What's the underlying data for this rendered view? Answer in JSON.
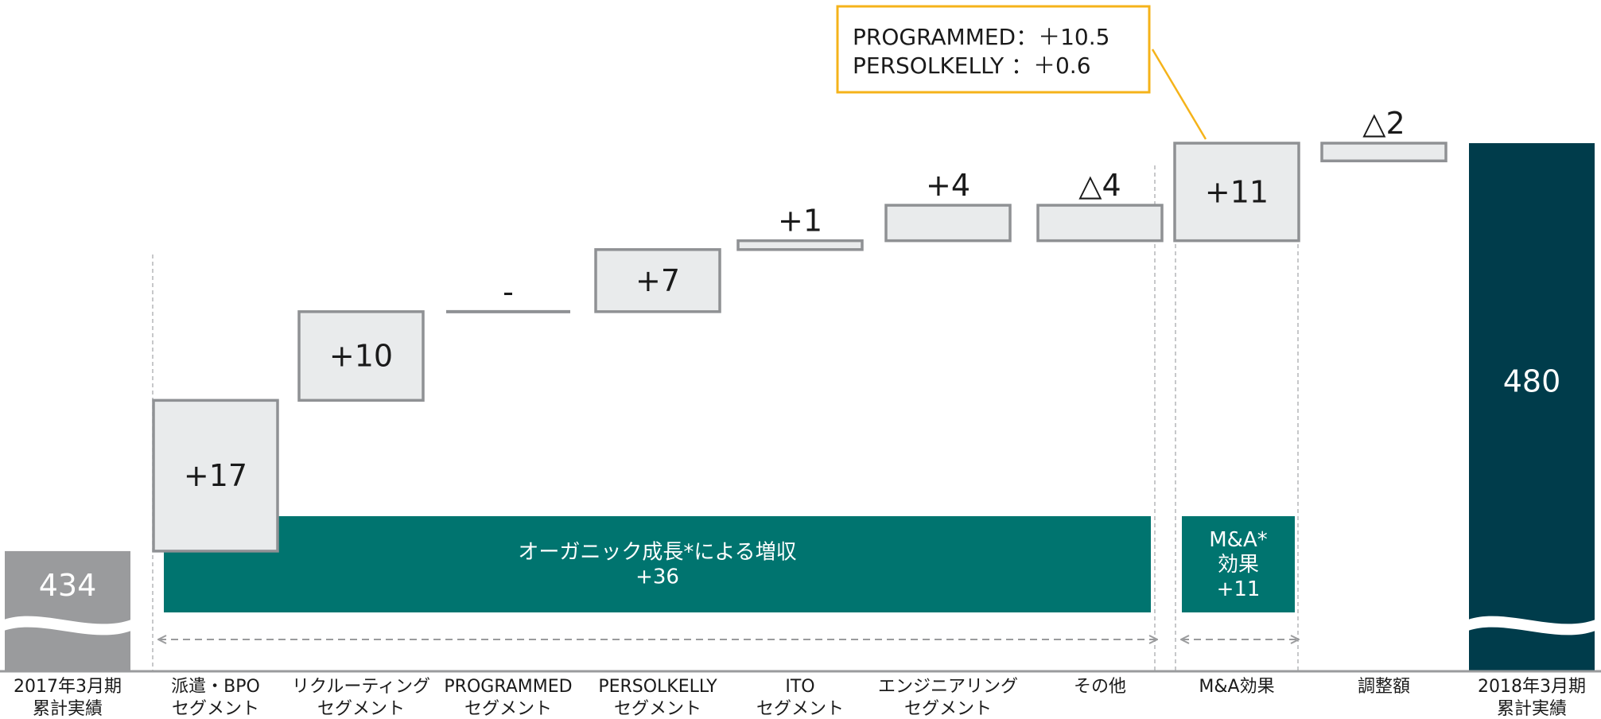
{
  "colors": {
    "start_bar": "#9a9b9d",
    "end_bar": "#003c4b",
    "delta_fill": "#e9ebec",
    "delta_stroke": "#8f9194",
    "band": "#00746f",
    "callout_border": "#f5b31a",
    "axis": "#9a9b9d",
    "guide": "#a9abae"
  },
  "callout": {
    "line1": "PROGRAMMED：＋10.5",
    "line2": "PERSOLKELLY ：＋0.6"
  },
  "chart_data": {
    "type": "bar",
    "subtype": "waterfall",
    "categories": [
      [
        "2017年3月期",
        "累計実績"
      ],
      [
        "派遣・BPO",
        "セグメント"
      ],
      [
        "リクルーティング",
        "セグメント"
      ],
      [
        "PROGRAMMED",
        "セグメント"
      ],
      [
        "PERSOLKELLY",
        "セグメント"
      ],
      [
        "ITO",
        "セグメント"
      ],
      [
        "エンジニアリング",
        "セグメント"
      ],
      [
        "その他"
      ],
      [
        "M&A効果"
      ],
      [
        "調整額"
      ],
      [
        "2018年3月期",
        "累計実績"
      ]
    ],
    "values": [
      434,
      17,
      10,
      0,
      7,
      1,
      4,
      -4,
      11,
      -2,
      480
    ],
    "labels": [
      "434",
      "+17",
      "+10",
      "-",
      "+7",
      "+1",
      "+4",
      "△4",
      "+11",
      "△2",
      "480"
    ],
    "kinds": [
      "total",
      "delta",
      "delta",
      "delta",
      "delta",
      "delta",
      "delta",
      "delta",
      "delta",
      "delta",
      "total"
    ],
    "axis_broken": true,
    "bands": [
      {
        "lines": [
          "オーガニック成長*による増収",
          "+36"
        ],
        "from": 1,
        "to": 7
      },
      {
        "lines": [
          "M&A*",
          "効果",
          "+11"
        ],
        "from": 8,
        "to": 8
      }
    ]
  }
}
